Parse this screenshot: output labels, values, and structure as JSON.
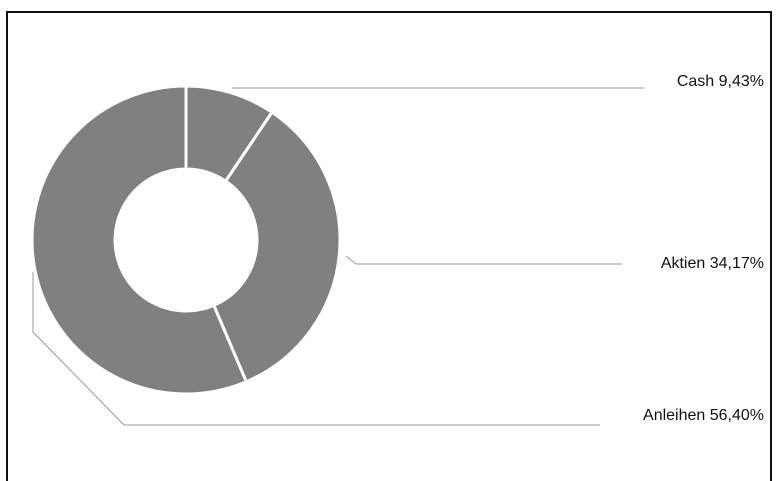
{
  "chart_data": {
    "type": "pie",
    "variant": "donut",
    "title": "",
    "slices": [
      {
        "name": "Cash",
        "value": 9.43,
        "label": "Cash 9,43%"
      },
      {
        "name": "Aktien",
        "value": 34.17,
        "label": "Aktien 34,17%"
      },
      {
        "name": "Anleihen",
        "value": 56.4,
        "label": "Anleihen 56,40%"
      }
    ],
    "colors": {
      "slice_fill": "#808080",
      "slice_border": "#ffffff",
      "leader_line": "#999999",
      "frame": "#111111"
    },
    "legend": "none",
    "labels_placement": "right"
  }
}
